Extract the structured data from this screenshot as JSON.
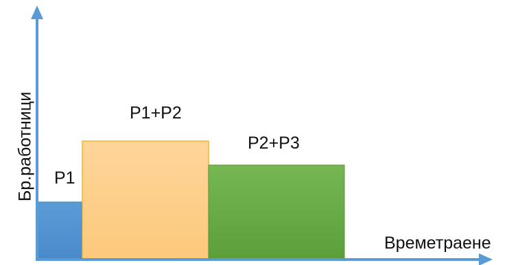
{
  "diagram": {
    "y_axis_label": "Бр.работници",
    "x_axis_label": "Времетраене",
    "blocks": [
      {
        "label": "P1",
        "color": "#5b9bd5",
        "border": "#3f7fc0"
      },
      {
        "label": "P1+P2",
        "color": "#fdd08a",
        "border": "#f3b52a"
      },
      {
        "label": "P2+P3",
        "color": "#6aac46",
        "border": "#5a9a3a"
      }
    ],
    "axis_color": "#5b9bd5"
  }
}
